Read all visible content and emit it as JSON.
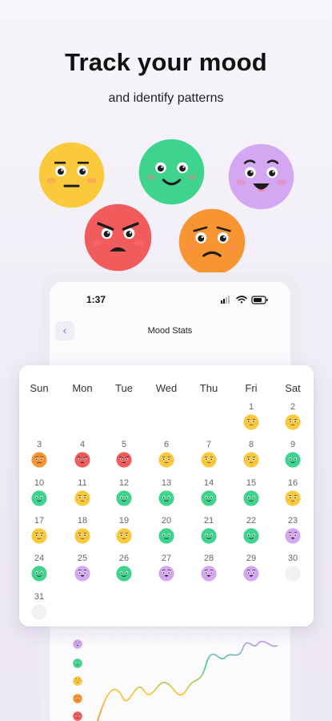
{
  "header": {
    "title": "Track your mood",
    "subtitle": "and identify patterns"
  },
  "colors": {
    "neutral": "#fbc93c",
    "happy": "#3ed48e",
    "excited": "#d3a7f2",
    "angry": "#f25b5b",
    "sad": "#f79532",
    "empty": "#eeeeee",
    "accent": "#7a6fd6"
  },
  "hero_faces": [
    {
      "mood": "neutral",
      "icon": "neutral-face-icon"
    },
    {
      "mood": "happy",
      "icon": "happy-face-icon"
    },
    {
      "mood": "excited",
      "icon": "excited-face-icon"
    },
    {
      "mood": "angry",
      "icon": "angry-face-icon"
    },
    {
      "mood": "sad",
      "icon": "sad-face-icon"
    }
  ],
  "phone": {
    "status_time": "1:37",
    "screen_title": "Mood Stats",
    "back_icon": "chevron-left-icon"
  },
  "calendar": {
    "weekdays": [
      "Sun",
      "Mon",
      "Tue",
      "Wed",
      "Thu",
      "Fri",
      "Sat"
    ],
    "days": [
      {
        "day": "1",
        "mood": "neutral"
      },
      {
        "day": "2",
        "mood": "neutral"
      },
      {
        "day": "3",
        "mood": "sad"
      },
      {
        "day": "4",
        "mood": "angry"
      },
      {
        "day": "5",
        "mood": "angry"
      },
      {
        "day": "6",
        "mood": "neutral"
      },
      {
        "day": "7",
        "mood": "neutral"
      },
      {
        "day": "8",
        "mood": "neutral"
      },
      {
        "day": "9",
        "mood": "happy"
      },
      {
        "day": "10",
        "mood": "happy"
      },
      {
        "day": "11",
        "mood": "neutral"
      },
      {
        "day": "12",
        "mood": "happy"
      },
      {
        "day": "13",
        "mood": "happy"
      },
      {
        "day": "14",
        "mood": "happy"
      },
      {
        "day": "15",
        "mood": "happy"
      },
      {
        "day": "16",
        "mood": "neutral"
      },
      {
        "day": "17",
        "mood": "neutral"
      },
      {
        "day": "18",
        "mood": "neutral"
      },
      {
        "day": "19",
        "mood": "neutral"
      },
      {
        "day": "20",
        "mood": "happy"
      },
      {
        "day": "21",
        "mood": "happy"
      },
      {
        "day": "22",
        "mood": "happy"
      },
      {
        "day": "23",
        "mood": "excited"
      },
      {
        "day": "24",
        "mood": "happy"
      },
      {
        "day": "25",
        "mood": "excited"
      },
      {
        "day": "26",
        "mood": "happy"
      },
      {
        "day": "27",
        "mood": "excited"
      },
      {
        "day": "28",
        "mood": "excited"
      },
      {
        "day": "29",
        "mood": "excited"
      },
      {
        "day": "30",
        "mood": "empty"
      },
      {
        "day": "31",
        "mood": "empty"
      }
    ]
  },
  "chart_legend": [
    "excited",
    "happy",
    "neutral",
    "sad",
    "angry"
  ]
}
